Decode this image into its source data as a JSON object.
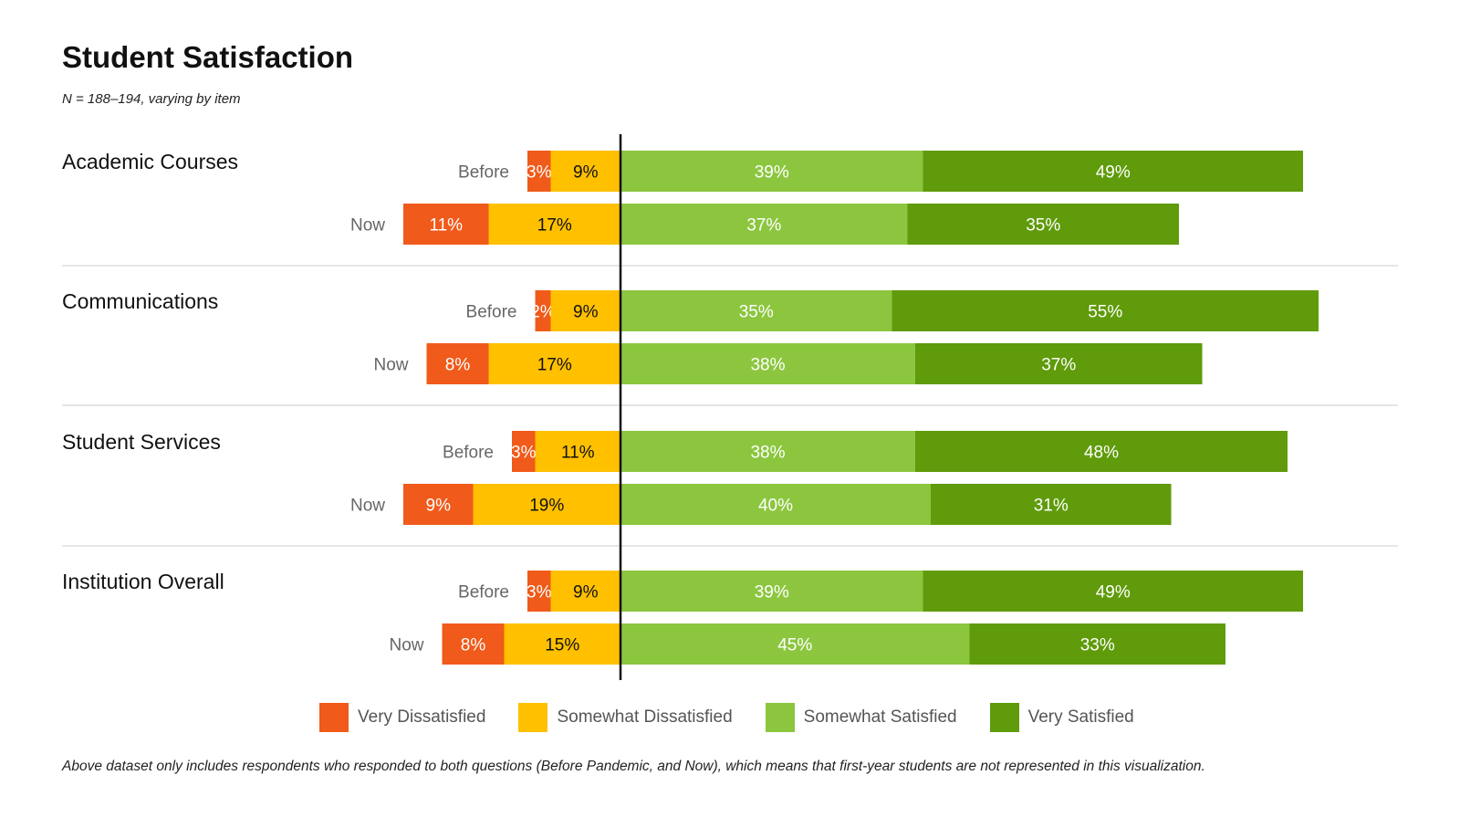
{
  "title": "Student Satisfaction",
  "subtitle": "N = 188–194, varying by item",
  "footnote": "Above dataset only includes respondents who responded to both questions (Before Pandemic, and Now), which means that first-year students are not represented in this visualization.",
  "colors": {
    "very_dissatisfied": "#F05A1A",
    "somewhat_dissatisfied": "#FFC000",
    "somewhat_satisfied": "#8CC63F",
    "very_satisfied": "#5F9B0A"
  },
  "legend": [
    {
      "label": "Very Dissatisfied",
      "color": "#F05A1A"
    },
    {
      "label": "Somewhat Dissatisfied",
      "color": "#FFC000"
    },
    {
      "label": "Somewhat Satisfied",
      "color": "#8CC63F"
    },
    {
      "label": "Very Satisfied",
      "color": "#5F9B0A"
    }
  ],
  "chart_data": {
    "type": "bar",
    "orientation": "horizontal",
    "stacking": "diverging",
    "unit": "%",
    "segment_order": [
      "Very Dissatisfied",
      "Somewhat Dissatisfied",
      "Somewhat Satisfied",
      "Very Satisfied"
    ],
    "groups": [
      {
        "name": "Academic Courses",
        "rows": [
          {
            "label": "Before",
            "values": [
              3,
              9,
              39,
              49
            ]
          },
          {
            "label": "Now",
            "values": [
              11,
              17,
              37,
              35
            ]
          }
        ]
      },
      {
        "name": "Communications",
        "rows": [
          {
            "label": "Before",
            "values": [
              2,
              9,
              35,
              55
            ]
          },
          {
            "label": "Now",
            "values": [
              8,
              17,
              38,
              37
            ]
          }
        ]
      },
      {
        "name": "Student Services",
        "rows": [
          {
            "label": "Before",
            "values": [
              3,
              11,
              38,
              48
            ]
          },
          {
            "label": "Now",
            "values": [
              9,
              19,
              40,
              31
            ]
          }
        ]
      },
      {
        "name": "Institution Overall",
        "rows": [
          {
            "label": "Before",
            "values": [
              3,
              9,
              39,
              49
            ]
          },
          {
            "label": "Now",
            "values": [
              8,
              15,
              45,
              33
            ]
          }
        ]
      }
    ]
  }
}
